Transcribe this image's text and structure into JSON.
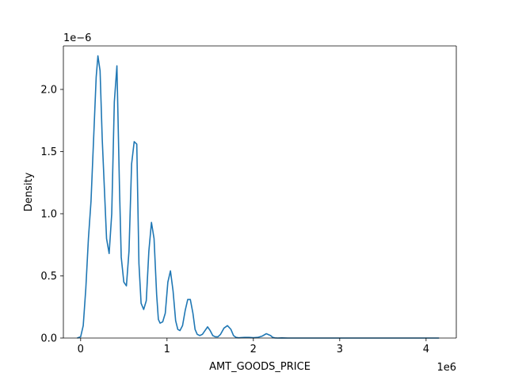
{
  "chart_data": {
    "type": "line",
    "title": "",
    "xlabel": "AMT_GOODS_PRICE",
    "ylabel": "Density",
    "x_offset_text": "1e6",
    "y_offset_text": "1e−6",
    "xlim": [
      -200000,
      4350000
    ],
    "ylim": [
      0,
      2.35e-06
    ],
    "x_ticks": [
      0,
      1000000,
      2000000,
      3000000,
      4000000
    ],
    "x_tick_labels": [
      "0",
      "1",
      "2",
      "3",
      "4"
    ],
    "y_ticks": [
      0,
      5e-07,
      1e-06,
      1.5e-06,
      2e-06
    ],
    "y_tick_labels": [
      "0.0",
      "0.5",
      "1.0",
      "1.5",
      "2.0"
    ],
    "grid": false,
    "legend": "none",
    "series": [
      {
        "color": "#1f77b4",
        "x": [
          -40000,
          0,
          30000,
          60000,
          90000,
          120000,
          150000,
          180000,
          200000,
          225000,
          250000,
          275000,
          300000,
          330000,
          360000,
          390000,
          420000,
          450000,
          470000,
          500000,
          530000,
          560000,
          590000,
          620000,
          650000,
          675000,
          700000,
          730000,
          760000,
          790000,
          820000,
          850000,
          880000,
          900000,
          920000,
          950000,
          980000,
          1010000,
          1040000,
          1070000,
          1100000,
          1125000,
          1150000,
          1180000,
          1210000,
          1240000,
          1270000,
          1300000,
          1325000,
          1350000,
          1380000,
          1410000,
          1440000,
          1470000,
          1500000,
          1530000,
          1560000,
          1590000,
          1620000,
          1660000,
          1700000,
          1740000,
          1770000,
          1800000,
          1830000,
          1860000,
          1900000,
          1950000,
          2000000,
          2050000,
          2100000,
          2150000,
          2200000,
          2225000,
          2250000,
          2280000,
          2330000,
          2400000,
          2600000,
          3000000,
          3500000,
          4000000,
          4150000
        ],
        "y": [
          0,
          1e-08,
          1e-07,
          4e-07,
          8e-07,
          1.1e-06,
          1.6e-06,
          2.1e-06,
          2.27e-06,
          2.15e-06,
          1.6e-06,
          1.2e-06,
          8e-07,
          6.8e-07,
          1e-06,
          1.9e-06,
          2.19e-06,
          1.2e-06,
          6.5e-07,
          4.5e-07,
          4.2e-07,
          7e-07,
          1.4e-06,
          1.58e-06,
          1.56e-06,
          6e-07,
          2.8e-07,
          2.3e-07,
          3e-07,
          7e-07,
          9.3e-07,
          8e-07,
          3.5e-07,
          1.5e-07,
          1.2e-07,
          1.3e-07,
          2e-07,
          4.5e-07,
          5.4e-07,
          3.8e-07,
          1.4e-07,
          7e-08,
          6e-08,
          1e-07,
          2.2e-07,
          3.1e-07,
          3.1e-07,
          2e-07,
          7e-08,
          3e-08,
          2e-08,
          3e-08,
          6e-08,
          9e-08,
          6e-08,
          2e-08,
          1e-08,
          1e-08,
          3e-08,
          8e-08,
          1e-07,
          7e-08,
          2e-08,
          5e-09,
          2e-09,
          4e-09,
          5e-09,
          5e-09,
          3e-09,
          5e-09,
          1.5e-08,
          3.5e-08,
          2e-08,
          5e-09,
          1e-09,
          0,
          1e-09,
          0,
          0,
          0,
          0,
          0,
          0
        ]
      }
    ]
  }
}
